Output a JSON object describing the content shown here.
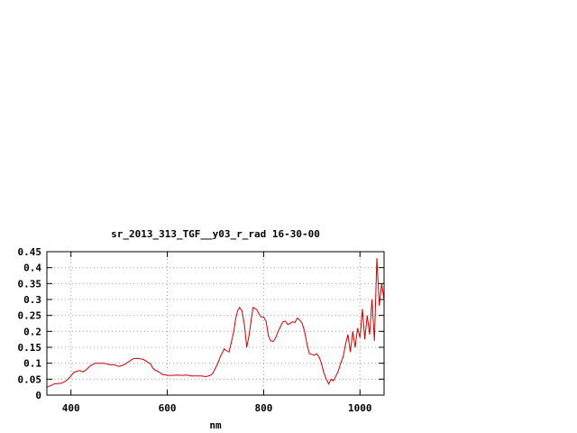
{
  "chart_data": {
    "type": "line",
    "title": "sr_2013_313_TGF__y03_r_rad 16-30-00",
    "xlabel": "nm",
    "ylabel": "",
    "xlim": [
      350,
      1050
    ],
    "ylim": [
      0,
      0.45
    ],
    "grid": true,
    "xticks": [
      400,
      600,
      800,
      1000
    ],
    "yticks": [
      0,
      0.05,
      0.1,
      0.15,
      0.2,
      0.25,
      0.3,
      0.35,
      0.4,
      0.45
    ],
    "xtick_labels": [
      "400",
      "600",
      "800",
      "1000"
    ],
    "ytick_labels": [
      "0",
      "0.05",
      "0.1",
      "0.15",
      "0.2",
      "0.25",
      "0.3",
      "0.35",
      "0.4",
      "0.45"
    ],
    "line_color": "#cc0000",
    "series": [
      {
        "x": [
          350,
          358,
          365,
          372,
          380,
          390,
          400,
          405,
          410,
          418,
          425,
          432,
          440,
          450,
          460,
          470,
          480,
          490,
          500,
          510,
          520,
          530,
          540,
          550,
          558,
          565,
          570,
          575,
          580,
          590,
          600,
          610,
          620,
          630,
          640,
          650,
          660,
          670,
          680,
          690,
          695,
          700,
          705,
          710,
          715,
          718,
          722,
          728,
          732,
          738,
          742,
          746,
          750,
          755,
          760,
          765,
          770,
          775,
          778,
          782,
          786,
          790,
          795,
          800,
          805,
          810,
          815,
          820,
          825,
          830,
          835,
          840,
          845,
          850,
          855,
          860,
          865,
          870,
          875,
          880,
          885,
          890,
          895,
          900,
          905,
          910,
          915,
          920,
          925,
          930,
          935,
          940,
          945,
          950,
          955,
          960,
          965,
          970,
          975,
          980,
          985,
          990,
          995,
          1000,
          1005,
          1010,
          1015,
          1020,
          1025,
          1030,
          1035,
          1040,
          1045,
          1050
        ],
        "y": [
          0.025,
          0.03,
          0.035,
          0.036,
          0.037,
          0.045,
          0.06,
          0.07,
          0.074,
          0.077,
          0.073,
          0.08,
          0.092,
          0.1,
          0.1,
          0.1,
          0.095,
          0.095,
          0.09,
          0.095,
          0.105,
          0.115,
          0.115,
          0.112,
          0.105,
          0.098,
          0.085,
          0.078,
          0.075,
          0.065,
          0.062,
          0.062,
          0.063,
          0.062,
          0.063,
          0.06,
          0.06,
          0.06,
          0.058,
          0.062,
          0.07,
          0.085,
          0.1,
          0.12,
          0.135,
          0.145,
          0.14,
          0.135,
          0.16,
          0.2,
          0.24,
          0.265,
          0.275,
          0.265,
          0.22,
          0.15,
          0.19,
          0.245,
          0.275,
          0.272,
          0.268,
          0.255,
          0.245,
          0.245,
          0.232,
          0.185,
          0.17,
          0.168,
          0.18,
          0.2,
          0.215,
          0.23,
          0.232,
          0.222,
          0.225,
          0.23,
          0.228,
          0.242,
          0.235,
          0.225,
          0.2,
          0.16,
          0.13,
          0.128,
          0.125,
          0.13,
          0.12,
          0.1,
          0.07,
          0.05,
          0.035,
          0.05,
          0.045,
          0.06,
          0.075,
          0.1,
          0.12,
          0.16,
          0.19,
          0.135,
          0.2,
          0.15,
          0.21,
          0.18,
          0.27,
          0.175,
          0.25,
          0.19,
          0.3,
          0.17,
          0.43,
          0.28,
          0.35,
          0.3
        ]
      }
    ]
  }
}
